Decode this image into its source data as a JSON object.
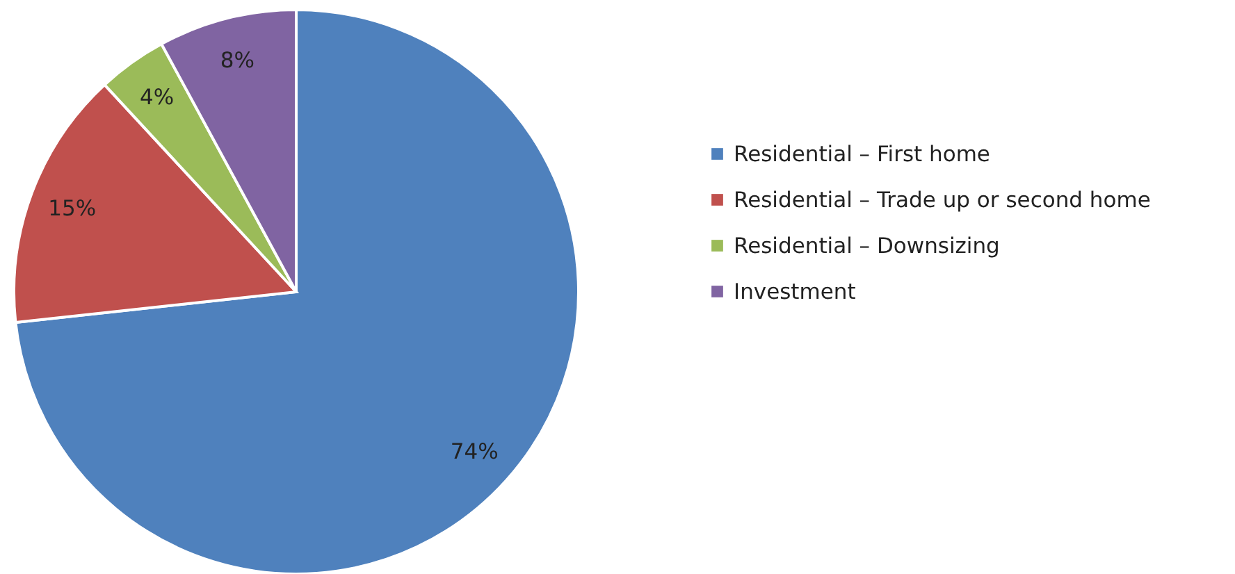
{
  "chart_data": {
    "type": "pie",
    "categories": [
      "Residential – First home",
      "Residential – Trade up or second home",
      "Residential – Downsizing",
      "Investment"
    ],
    "values": [
      74,
      15,
      4,
      8
    ],
    "colors": [
      "#4f81bd",
      "#c0504d",
      "#9bbb59",
      "#8064a2"
    ],
    "value_labels": [
      "74%",
      "15%",
      "4%",
      "8%"
    ],
    "legend": "right"
  }
}
